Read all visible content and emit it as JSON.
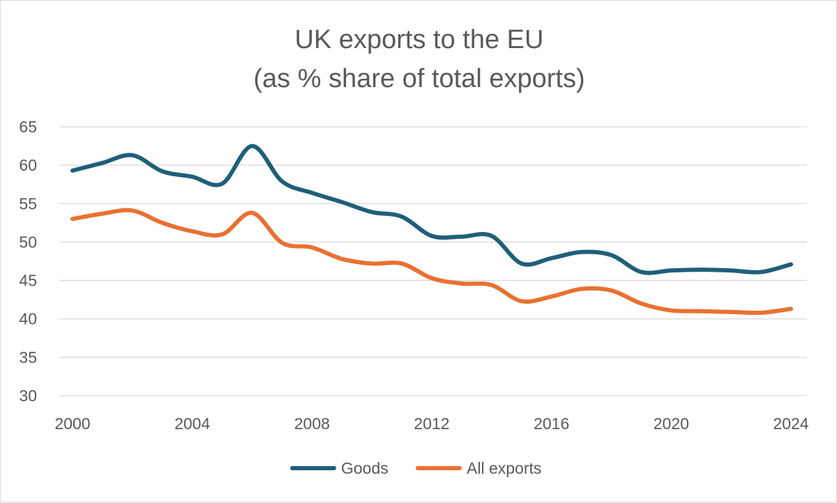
{
  "chart_data": {
    "type": "line",
    "title": "UK exports to the EU",
    "subtitle": "(as % share of total exports)",
    "xlabel": "",
    "ylabel": "",
    "x": [
      2000,
      2001,
      2002,
      2003,
      2004,
      2005,
      2006,
      2007,
      2008,
      2009,
      2010,
      2011,
      2012,
      2013,
      2014,
      2015,
      2016,
      2017,
      2018,
      2019,
      2020,
      2021,
      2022,
      2023,
      2024
    ],
    "x_ticks": [
      "2000",
      "2004",
      "2008",
      "2012",
      "2016",
      "2020",
      "2024"
    ],
    "y_ticks": [
      "30",
      "35",
      "40",
      "45",
      "50",
      "55",
      "60",
      "65"
    ],
    "ylim": [
      30,
      65
    ],
    "xlim": [
      2000,
      2024
    ],
    "grid": "horizontal",
    "legend_position": "bottom",
    "series": [
      {
        "name": "Goods",
        "color": "#1f5f7a",
        "values": [
          59.3,
          60.3,
          61.3,
          59.2,
          58.5,
          57.6,
          62.5,
          57.9,
          56.4,
          55.2,
          53.9,
          53.3,
          50.8,
          50.7,
          50.8,
          47.2,
          47.9,
          48.7,
          48.3,
          46.1,
          46.3,
          46.4,
          46.3,
          46.1,
          47.1
        ]
      },
      {
        "name": "All exports",
        "color": "#e97132",
        "values": [
          53.0,
          53.7,
          54.1,
          52.5,
          51.4,
          51.0,
          53.8,
          49.9,
          49.3,
          47.8,
          47.2,
          47.2,
          45.3,
          44.6,
          44.4,
          42.3,
          42.9,
          43.9,
          43.7,
          42.0,
          41.1,
          41.0,
          40.9,
          40.8,
          41.3
        ]
      }
    ]
  }
}
